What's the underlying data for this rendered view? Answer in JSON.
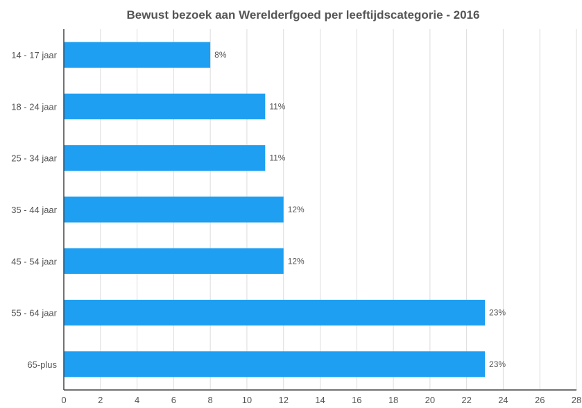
{
  "chart_data": {
    "type": "bar",
    "orientation": "horizontal",
    "title": "Bewust bezoek aan Werelderfgoed per leeftijdscategorie - 2016",
    "xlabel": "",
    "ylabel": "",
    "categories": [
      "14 - 17 jaar",
      "18 - 24 jaar",
      "25 - 34 jaar",
      "35 - 44 jaar",
      "45 - 54 jaar",
      "55 - 64 jaar",
      "65-plus"
    ],
    "values": [
      8,
      11,
      11,
      12,
      12,
      23,
      23
    ],
    "data_labels": [
      "8%",
      "11%",
      "11%",
      "12%",
      "12%",
      "23%",
      "23%"
    ],
    "xlim": [
      0,
      28
    ],
    "x_ticks": [
      "0",
      "2",
      "4",
      "6",
      "8",
      "10",
      "12",
      "14",
      "16",
      "18",
      "20",
      "22",
      "24",
      "26",
      "28"
    ],
    "grid": "vertical",
    "legend": "none",
    "colors": {
      "bar": "#1e9ff2",
      "grid": "#dcdcdc",
      "axis": "#444444",
      "text": "#555555"
    }
  }
}
